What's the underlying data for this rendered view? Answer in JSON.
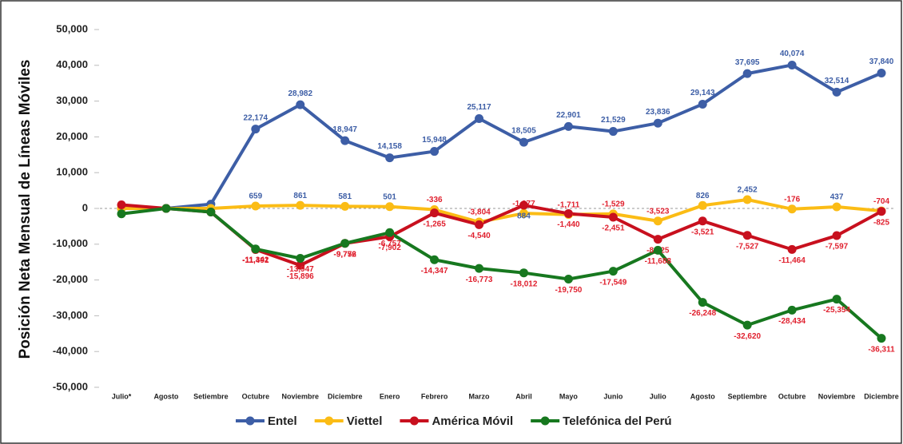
{
  "chart_data": {
    "type": "line",
    "ylabel": "Posición Neta Mensual de Líneas Móviles",
    "categories": [
      "Julio*",
      "Agosto",
      "Setiembre",
      "Octubre",
      "Noviembre",
      "Diciembre",
      "Enero",
      "Febrero",
      "Marzo",
      "Abril",
      "Mayo",
      "Junio",
      "Julio",
      "Agosto",
      "Septiembre",
      "Octubre",
      "Noviembre",
      "Diciembre"
    ],
    "ylim": [
      -50000,
      50000
    ],
    "yticks": [
      {
        "value": -50000,
        "label": "-50,000"
      },
      {
        "value": -40000,
        "label": "-40,000"
      },
      {
        "value": -30000,
        "label": "-30,000"
      },
      {
        "value": -20000,
        "label": "-20,000"
      },
      {
        "value": -10000,
        "label": "-10,000"
      },
      0,
      {
        "value": 10000,
        "label": "10,000"
      },
      {
        "value": 20000,
        "label": "20,000"
      },
      {
        "value": 30000,
        "label": "30,000"
      },
      {
        "value": 40000,
        "label": "40,000"
      },
      {
        "value": 50000,
        "label": "50,000"
      }
    ],
    "legend": "bottom",
    "series": [
      {
        "name": "Entel",
        "color": "#3d5ea6",
        "values": [
          0,
          0,
          1200,
          22174,
          28982,
          18947,
          14158,
          15948,
          25117,
          18505,
          22901,
          21529,
          23836,
          29143,
          37695,
          40074,
          32514,
          37840
        ],
        "value_labels": [
          null,
          null,
          null,
          "22,174",
          "28,982",
          "18,947",
          "14,158",
          "15,948",
          "25,117",
          "18,505",
          "22,901",
          "21,529",
          "23,836",
          "29,143",
          "37,695",
          "40,074",
          "32,514",
          "37,840"
        ]
      },
      {
        "name": "Viettel",
        "color": "#fbbc15",
        "values": [
          0,
          0,
          0,
          659,
          861,
          581,
          501,
          -336,
          -3804,
          -1377,
          -1711,
          -1529,
          -3523,
          826,
          2452,
          -176,
          437,
          -704
        ],
        "value_labels": [
          null,
          null,
          null,
          "659",
          "861",
          "581",
          "501",
          "-336",
          "-3,804",
          "-1,377",
          "-1,711",
          "-1,529",
          "-3,523",
          "826",
          "2,452",
          "-176",
          "437",
          "-704"
        ]
      },
      {
        "name": "América Móvil",
        "color": "#c8101e",
        "values": [
          1000,
          0,
          -1000,
          -11491,
          -15896,
          -9776,
          -7902,
          -1265,
          -4540,
          884,
          -1440,
          -2451,
          -8625,
          -3521,
          -7527,
          -11464,
          -7597,
          -825
        ],
        "value_labels": [
          null,
          null,
          null,
          "-11,491",
          "-15,896",
          "-9,776",
          "-7,902",
          "-1,265",
          "-4,540",
          "884",
          "-1,440",
          "-2,451",
          "-8,625",
          "-3,521",
          "-7,527",
          "-11,464",
          "-7,597",
          "-825"
        ]
      },
      {
        "name": "Telefónica del Perú",
        "color": "#17781f",
        "values": [
          -1500,
          0,
          -1000,
          -11342,
          -13947,
          -9752,
          -6757,
          -14347,
          -16773,
          -18012,
          -19750,
          -17549,
          -11688,
          -26248,
          -32620,
          -28434,
          -25354,
          -36311
        ],
        "value_labels": [
          null,
          null,
          null,
          "-11,342",
          "-13,947",
          "-9,752",
          "-6,757",
          "-14,347",
          "-16,773",
          "-18,012",
          "-19,750",
          "-17,549",
          "-11,688",
          "-26,248",
          "-32,620",
          "-28,434",
          "-25,354",
          "-36,311"
        ]
      }
    ]
  }
}
